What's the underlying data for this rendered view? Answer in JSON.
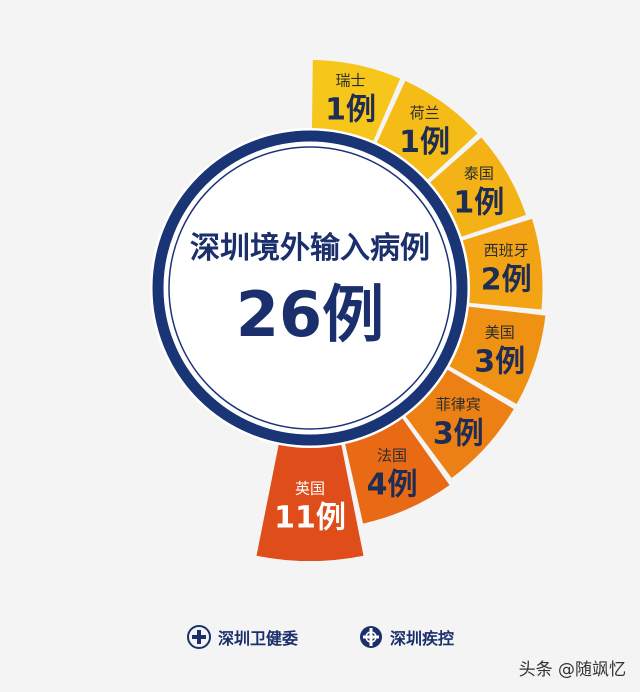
{
  "chart_data": {
    "type": "pie",
    "title": "深圳境外输入病例",
    "total_label": "26例",
    "categories": [
      "瑞士",
      "荷兰",
      "泰国",
      "西班牙",
      "美国",
      "菲律宾",
      "法国",
      "英国"
    ],
    "values": [
      1,
      1,
      1,
      2,
      3,
      3,
      4,
      11
    ],
    "value_labels": [
      "1例",
      "1例",
      "1例",
      "2例",
      "3例",
      "3例",
      "4例",
      "11例"
    ],
    "colors": [
      "#f7c61a",
      "#f5bc17",
      "#f3b216",
      "#f2a415",
      "#ef9214",
      "#ec8014",
      "#e86a14",
      "#df4d1a"
    ]
  },
  "footer": {
    "logo_left": "深圳卫健委",
    "logo_right": "深圳疾控"
  },
  "watermark": "头条 @随飒忆"
}
